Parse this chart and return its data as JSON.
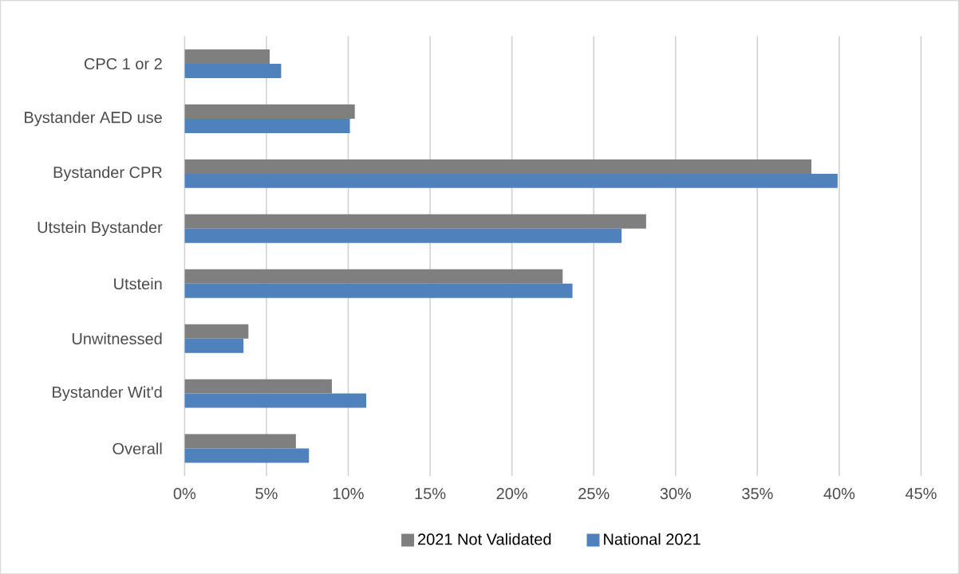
{
  "chart_data": {
    "type": "bar",
    "orientation": "horizontal",
    "categories": [
      "CPC 1 or 2",
      "Bystander AED use",
      "Bystander CPR",
      "Utstein Bystander",
      "Utstein",
      "Unwitnessed",
      "Bystander Wit'd",
      "Overall"
    ],
    "series": [
      {
        "name": "2021 Not Validated",
        "color": "#7f7f7f",
        "values": [
          5.2,
          10.4,
          38.3,
          28.2,
          23.1,
          3.9,
          9.0,
          6.8
        ]
      },
      {
        "name": "National 2021",
        "color": "#4f81bd",
        "values": [
          5.9,
          10.1,
          39.9,
          26.7,
          23.7,
          3.6,
          11.1,
          7.6
        ]
      }
    ],
    "xlim": [
      0,
      45
    ],
    "xticks": [
      {
        "value": 0,
        "label": "0%"
      },
      {
        "value": 5,
        "label": "5%"
      },
      {
        "value": 10,
        "label": "10%"
      },
      {
        "value": 15,
        "label": "15%"
      },
      {
        "value": 20,
        "label": "20%"
      },
      {
        "value": 25,
        "label": "25%"
      },
      {
        "value": 30,
        "label": "30%"
      },
      {
        "value": 35,
        "label": "35%"
      },
      {
        "value": 40,
        "label": "40%"
      },
      {
        "value": 45,
        "label": "45%"
      }
    ],
    "grid": "x",
    "legend": "bottom"
  }
}
